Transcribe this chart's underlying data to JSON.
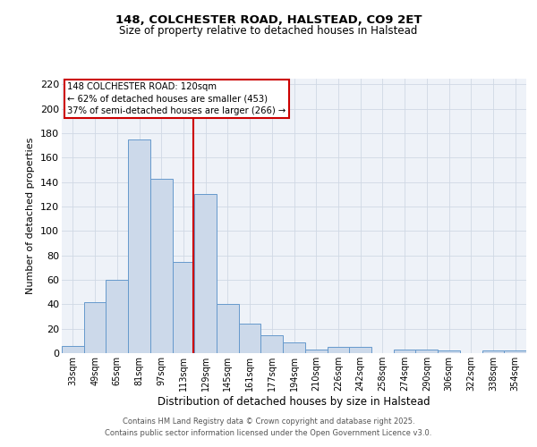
{
  "title1": "148, COLCHESTER ROAD, HALSTEAD, CO9 2ET",
  "title2": "Size of property relative to detached houses in Halstead",
  "xlabel": "Distribution of detached houses by size in Halstead",
  "ylabel": "Number of detached properties",
  "categories": [
    "33sqm",
    "49sqm",
    "65sqm",
    "81sqm",
    "97sqm",
    "113sqm",
    "129sqm",
    "145sqm",
    "161sqm",
    "177sqm",
    "194sqm",
    "210sqm",
    "226sqm",
    "242sqm",
    "258sqm",
    "274sqm",
    "290sqm",
    "306sqm",
    "322sqm",
    "338sqm",
    "354sqm"
  ],
  "values": [
    6,
    42,
    60,
    175,
    143,
    75,
    130,
    40,
    24,
    15,
    9,
    3,
    5,
    5,
    0,
    3,
    3,
    2,
    0,
    2,
    2
  ],
  "bar_color": "#ccd9ea",
  "bar_edge_color": "#6699cc",
  "grid_color": "#d0d8e4",
  "bg_color": "#eef2f8",
  "annotation_title": "148 COLCHESTER ROAD: 120sqm",
  "annotation_line1": "← 62% of detached houses are smaller (453)",
  "annotation_line2": "37% of semi-detached houses are larger (266) →",
  "annotation_box_color": "#cc0000",
  "marker_line_color": "#cc0000",
  "ylim": [
    0,
    225
  ],
  "yticks": [
    0,
    20,
    40,
    60,
    80,
    100,
    120,
    140,
    160,
    180,
    200,
    220
  ],
  "footer1": "Contains HM Land Registry data © Crown copyright and database right 2025.",
  "footer2": "Contains public sector information licensed under the Open Government Licence v3.0."
}
